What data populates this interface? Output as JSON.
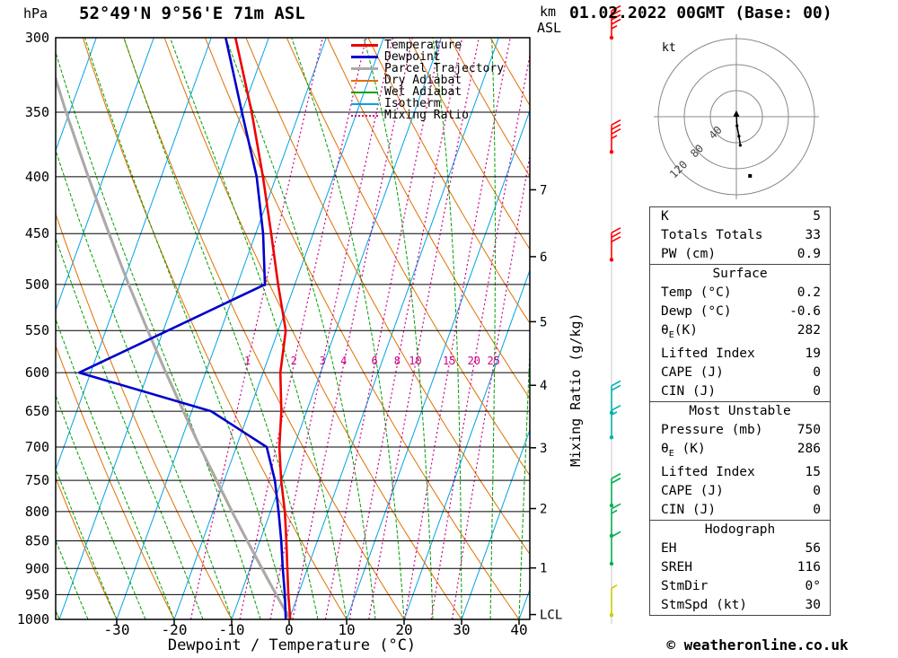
{
  "header": {
    "pressure_axis_unit": "hPa",
    "station_title": "52°49'N 9°56'E 71m ASL",
    "km_label": "km",
    "asl_label": "ASL",
    "datetime_title": "01.02.2022 00GMT (Base: 00)"
  },
  "footer": {
    "x_axis_label": "Dewpoint / Temperature (°C)",
    "copyright": "© weatheronline.co.uk"
  },
  "right_axis_label": "Mixing Ratio (g/kg)",
  "legend": [
    {
      "label": "Temperature",
      "color": "#ee0000",
      "width": 3,
      "style": "solid"
    },
    {
      "label": "Dewpoint",
      "color": "#0000cc",
      "width": 3,
      "style": "solid"
    },
    {
      "label": "Parcel Trajectory",
      "color": "#aaaaaa",
      "width": 3,
      "style": "solid"
    },
    {
      "label": "Dry Adiabat",
      "color": "#e07000",
      "width": 2,
      "style": "solid"
    },
    {
      "label": "Wet Adiabat",
      "color": "#00a000",
      "width": 2,
      "style": "solid"
    },
    {
      "label": "Isotherm",
      "color": "#00a2e8",
      "width": 2,
      "style": "solid"
    },
    {
      "label": "Mixing Ratio",
      "color": "#cc0088",
      "width": 2,
      "style": "dotted"
    }
  ],
  "chart_data": {
    "type": "line",
    "title": "52°49'N 9°56'E 71m ASL",
    "subtitle": "01.02.2022 00GMT (Base: 00)",
    "x_axis": {
      "label": "Dewpoint / Temperature (°C)",
      "unit": "°C",
      "ticks": [
        -30,
        -20,
        -10,
        0,
        10,
        20,
        30,
        40
      ]
    },
    "y_axis": {
      "unit": "hPa",
      "scale": "log",
      "ticks": [
        300,
        350,
        400,
        450,
        500,
        550,
        600,
        650,
        700,
        750,
        800,
        850,
        900,
        950,
        1000
      ]
    },
    "km_asl_ticks": [
      {
        "label": "7",
        "pressure": 411
      },
      {
        "label": "6",
        "pressure": 472
      },
      {
        "label": "5",
        "pressure": 540
      },
      {
        "label": "4",
        "pressure": 616
      },
      {
        "label": "3",
        "pressure": 701
      },
      {
        "label": "2",
        "pressure": 795
      },
      {
        "label": "1",
        "pressure": 899
      },
      {
        "label": "LCL",
        "pressure": 990
      }
    ],
    "mixing_ratio_lines_g_per_kg": [
      1,
      2,
      3,
      4,
      6,
      8,
      10,
      15,
      20,
      25
    ],
    "isotherm_step_c": 10,
    "series": [
      {
        "name": "Temperature",
        "color": "#ee0000",
        "pressure_hpa": [
          1000,
          950,
          900,
          850,
          800,
          750,
          700,
          650,
          600,
          550,
          500,
          450,
          400,
          350,
          300
        ],
        "temp_c": [
          0.2,
          -1.7,
          -3.5,
          -5.4,
          -7.5,
          -10.1,
          -12.5,
          -14.4,
          -17.0,
          -18.7,
          -22.9,
          -27.3,
          -32.3,
          -38.3,
          -45.8
        ]
      },
      {
        "name": "Dewpoint",
        "color": "#0000cc",
        "pressure_hpa": [
          1000,
          950,
          900,
          850,
          800,
          750,
          700,
          650,
          600,
          550,
          500,
          450,
          400,
          350,
          300
        ],
        "temp_c": [
          -0.6,
          -2.3,
          -4.3,
          -6.3,
          -8.6,
          -11.2,
          -14.7,
          -26.6,
          -52.0,
          -39.2,
          -25.2,
          -28.7,
          -33.4,
          -40.0,
          -47.5
        ]
      },
      {
        "name": "Parcel Trajectory",
        "color": "#aaaaaa",
        "pressure_hpa": [
          1000,
          950,
          900,
          850,
          800,
          750,
          700,
          650,
          600,
          550,
          500,
          450,
          400,
          350,
          300
        ],
        "temp_c": [
          0.2,
          -3.8,
          -7.9,
          -12.2,
          -16.7,
          -21.3,
          -26.3,
          -31.4,
          -36.9,
          -42.7,
          -48.9,
          -55.5,
          -62.7,
          -70.6,
          -79.3
        ]
      }
    ],
    "wind_barbs": [
      {
        "pressure": 300,
        "speed_kt": 45,
        "direction_deg": 0,
        "color": "#ff0000"
      },
      {
        "pressure": 380,
        "speed_kt": 35,
        "direction_deg": 0,
        "color": "#ff0000"
      },
      {
        "pressure": 475,
        "speed_kt": 30,
        "direction_deg": 0,
        "color": "#ff0000"
      },
      {
        "pressure": 652,
        "speed_kt": 20,
        "direction_deg": 0,
        "color": "#00b0b0"
      },
      {
        "pressure": 686,
        "speed_kt": 15,
        "direction_deg": 0,
        "color": "#00b0b0"
      },
      {
        "pressure": 790,
        "speed_kt": 20,
        "direction_deg": 0,
        "color": "#00b050"
      },
      {
        "pressure": 841,
        "speed_kt": 15,
        "direction_deg": 0,
        "color": "#00b050"
      },
      {
        "pressure": 891,
        "speed_kt": 10,
        "direction_deg": 0,
        "color": "#00b050"
      },
      {
        "pressure": 991,
        "speed_kt": 5,
        "direction_deg": 0,
        "color": "#cccc00"
      }
    ],
    "hodograph": {
      "unit_label": "kt",
      "ring_radii_kt": [
        40,
        80,
        120
      ],
      "trace_uv_kt": [
        [
          0,
          3
        ],
        [
          1,
          -14
        ],
        [
          4,
          -30
        ],
        [
          6,
          -44
        ]
      ],
      "storm_point_uv_kt": [
        21,
        -91
      ]
    }
  },
  "tables": [
    {
      "header": null,
      "rows": [
        [
          "K",
          "5"
        ],
        [
          "Totals Totals",
          "33"
        ],
        [
          "PW (cm)",
          "0.9"
        ]
      ]
    },
    {
      "header": "Surface",
      "rows": [
        [
          "Temp (°C)",
          "0.2"
        ],
        [
          "Dewp (°C)",
          "-0.6"
        ],
        [
          "θE(K)",
          "282"
        ],
        [
          "Lifted Index",
          "19"
        ],
        [
          "CAPE (J)",
          "0"
        ],
        [
          "CIN (J)",
          "0"
        ]
      ]
    },
    {
      "header": "Most Unstable",
      "rows": [
        [
          "Pressure (mb)",
          "750"
        ],
        [
          "θE (K)",
          "286"
        ],
        [
          "Lifted Index",
          "15"
        ],
        [
          "CAPE (J)",
          "0"
        ],
        [
          "CIN (J)",
          "0"
        ]
      ]
    },
    {
      "header": "Hodograph",
      "rows": [
        [
          "EH",
          "56"
        ],
        [
          "SREH",
          "116"
        ],
        [
          "StmDir",
          "0°"
        ],
        [
          "StmSpd (kt)",
          "30"
        ]
      ]
    }
  ]
}
